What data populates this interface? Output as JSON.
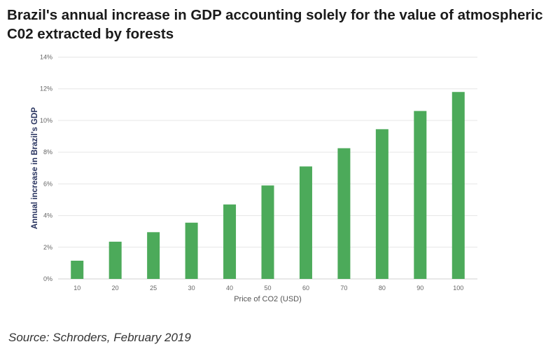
{
  "chart_data": {
    "type": "bar",
    "title": "Brazil's annual increase in GDP accounting solely for the value of atmospheric C02 extracted by forests",
    "xlabel": "Price of CO2 (USD)",
    "ylabel": "Annual increase in Brazil's GDP",
    "categories": [
      "10",
      "20",
      "25",
      "30",
      "40",
      "50",
      "60",
      "70",
      "80",
      "90",
      "100"
    ],
    "values": [
      1.15,
      2.35,
      2.95,
      3.55,
      4.7,
      5.9,
      7.1,
      8.25,
      9.45,
      10.6,
      11.8
    ],
    "ylim": [
      0,
      14
    ],
    "yticks": [
      "0%",
      "2%",
      "4%",
      "6%",
      "8%",
      "10%",
      "12%",
      "14%"
    ],
    "grid": true,
    "bar_color": "#4caa5a"
  },
  "source": "Source: Schroders, February 2019"
}
